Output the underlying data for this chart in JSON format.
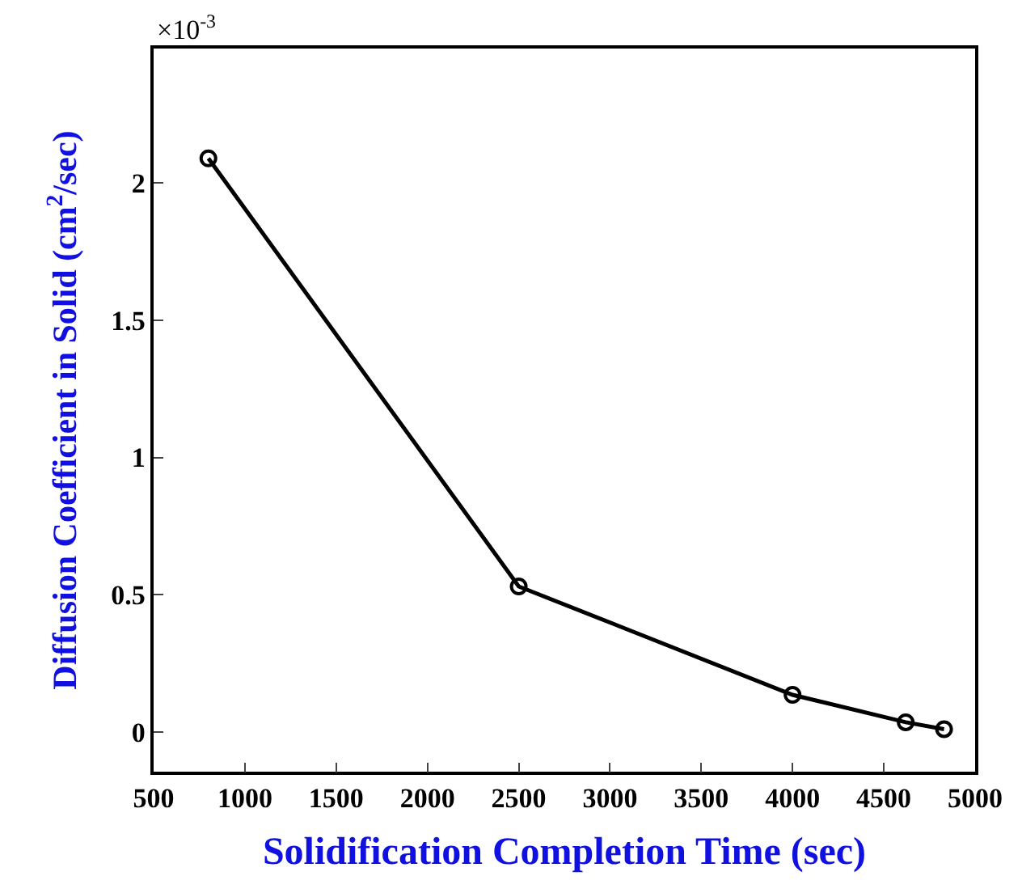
{
  "chart_data": {
    "type": "line",
    "xlabel": "Solidification Completion Time (sec)",
    "ylabel": "Diffusion Coefficient in Solid (cm$^{2}$/sec)",
    "annotations": [
      "×10$^{-3}$"
    ],
    "x": [
      800,
      2500,
      4000,
      4620,
      4830
    ],
    "series": [
      {
        "color": "#000000",
        "values": [
          2.09,
          0.53,
          0.135,
          0.035,
          0.01
        ]
      }
    ],
    "xlim": [
      500,
      5000
    ],
    "xticks": [
      500,
      1000,
      1500,
      2000,
      2500,
      3000,
      3500,
      4000,
      4500,
      5000
    ],
    "ylim": [
      -0.145,
      2.49
    ],
    "yticks": [
      0,
      0.5,
      1,
      1.5,
      2
    ],
    "legend": false,
    "marker": "circle",
    "line_style": "solid"
  }
}
